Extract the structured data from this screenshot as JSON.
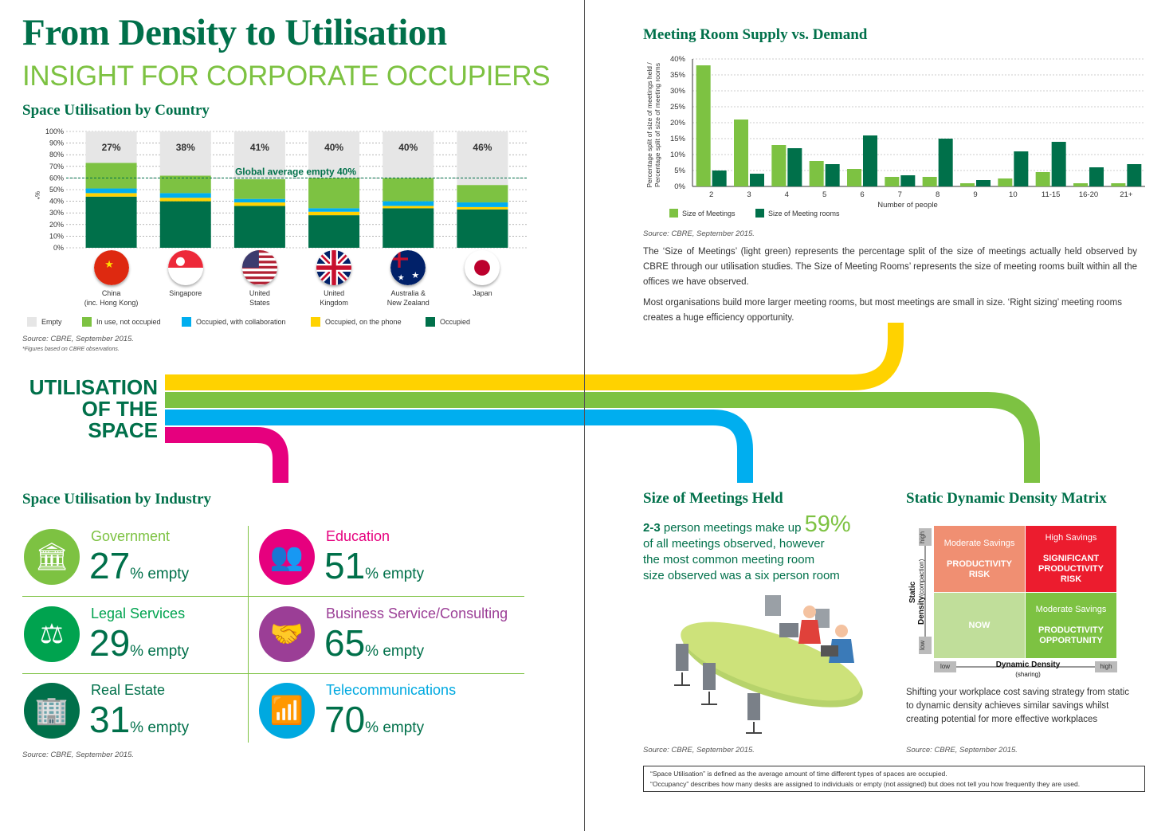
{
  "header": {
    "title": "From Density to Utilisation",
    "subtitle": "INSIGHT FOR CORPORATE OCCUPIERS"
  },
  "country_section": {
    "title": "Space Utilisation by Country",
    "ylabel": "%*",
    "global_avg_label": "Global average empty 40%",
    "countries": [
      {
        "name_l1": "China",
        "name_l2": "(inc. Hong Kong)",
        "empty_label": "27%"
      },
      {
        "name_l1": "Singapore",
        "name_l2": "",
        "empty_label": "38%"
      },
      {
        "name_l1": "United",
        "name_l2": "States",
        "empty_label": "41%"
      },
      {
        "name_l1": "United",
        "name_l2": "Kingdom",
        "empty_label": "40%"
      },
      {
        "name_l1": "Australia &",
        "name_l2": "New Zealand",
        "empty_label": "40%"
      },
      {
        "name_l1": "Japan",
        "name_l2": "",
        "empty_label": "46%"
      }
    ],
    "legend": [
      "Empty",
      "In use, not occupied",
      "Occupied, with collaboration",
      "Occupied, on the phone",
      "Occupied"
    ],
    "source": "Source: CBRE, September 2015.",
    "footnote": "*Figures based on CBRE observations."
  },
  "utilisation_banner": {
    "line1": "UTILISATION",
    "line2": "OF THE",
    "line3": "SPACE"
  },
  "industry_section": {
    "title": "Space Utilisation by Industry",
    "suffix": "% empty",
    "items": [
      {
        "name": "Government",
        "value": "27",
        "color": "#7dc242",
        "icon": "government-building-icon"
      },
      {
        "name": "Education",
        "value": "51",
        "color": "#e6007e",
        "icon": "education-classroom-icon"
      },
      {
        "name": "Legal Services",
        "value": "29",
        "color": "#00a34f",
        "icon": "legal-scales-icon"
      },
      {
        "name": "Business Service/Consulting",
        "value": "65",
        "color": "#9b3e96",
        "icon": "handshake-icon"
      },
      {
        "name": "Real Estate",
        "value": "31",
        "color": "#00704a",
        "icon": "office-building-icon"
      },
      {
        "name": "Telecommunications",
        "value": "70",
        "color": "#00a9e0",
        "icon": "signal-waves-icon"
      }
    ],
    "source": "Source: CBRE, September 2015."
  },
  "meeting_section": {
    "title": "Meeting Room Supply vs. Demand",
    "ylabel_l1": "Percentage split of size of meetings held /",
    "ylabel_l2": "Percentage split of size of meeting rooms",
    "xlabel": "Number of people",
    "source": "Source: CBRE, September 2015.",
    "para1": "The ‘Size of Meetings’ (light green) represents the percentage split of the size of meetings actually held observed by CBRE through our utilisation studies. The Size of Meeting Rooms’ represents the size of meeting rooms built within all the offices we have observed.",
    "para2": "Most organisations build more larger meeting rooms, but most meetings are small in size. ‘Right sizing’ meeting rooms creates a huge efficiency opportunity."
  },
  "meetings_held": {
    "title": "Size of Meetings Held",
    "bold": "2-3",
    "text_a": " person meetings make up ",
    "big": "59%",
    "line2": "of all meetings observed, however",
    "line3": "the most common meeting room",
    "line4": "size observed was a six person room",
    "source": "Source: CBRE, September 2015."
  },
  "matrix": {
    "title": "Static Dynamic Density Matrix",
    "y_axis": "Static Density",
    "y_sub": "(compaction)",
    "x_axis": "Dynamic Density",
    "x_sub": "(sharing)",
    "high": "high",
    "low": "low",
    "tl_1": "Moderate Savings",
    "tl_2a": "PRODUCTIVITY",
    "tl_2b": "RISK",
    "tr_1": "High Savings",
    "tr_2a": "SIGNIFICANT",
    "tr_2b": "PRODUCTIVITY",
    "tr_2c": "RISK",
    "bl_2": "NOW",
    "br_1": "Moderate Savings",
    "br_2a": "PRODUCTIVITY",
    "br_2b": "OPPORTUNITY",
    "para_l1": "Shifting your workplace cost saving strategy from static",
    "para_l2": "to dynamic density achieves similar savings whilst",
    "para_l3": "creating potential for more effective workplaces",
    "source": "Source: CBRE, September 2015."
  },
  "definitions": {
    "line1": "“Space Utilisation” is defined as the average amount of time different types of spaces are occupied.",
    "line2": "“Occupancy” describes how many desks are assigned to individuals or empty (not assigned) but does not tell you how frequently they are used."
  },
  "colors": {
    "dark_green": "#00704a",
    "light_green": "#7dc242",
    "blue": "#00aeef",
    "yellow": "#ffd200",
    "magenta": "#e6007e",
    "empty_grey": "#e6e6e6"
  },
  "chart_data": [
    {
      "type": "bar",
      "stacked": true,
      "title": "Space Utilisation by Country",
      "ylabel": "%*",
      "ylim": [
        0,
        100
      ],
      "yticks": [
        "0%",
        "10%",
        "20%",
        "30%",
        "40%",
        "50%",
        "60%",
        "70%",
        "80%",
        "90%",
        "100%"
      ],
      "categories": [
        "China (inc. Hong Kong)",
        "Singapore",
        "United States",
        "United Kingdom",
        "Australia & New Zealand",
        "Japan"
      ],
      "series": [
        {
          "name": "Occupied",
          "values": [
            44,
            40,
            36,
            28,
            34,
            33
          ]
        },
        {
          "name": "Occupied, on the phone",
          "values": [
            3,
            3,
            3,
            3,
            2,
            2
          ]
        },
        {
          "name": "Occupied, with collaboration",
          "values": [
            4,
            4,
            3,
            3,
            4,
            4
          ]
        },
        {
          "name": "In use, not occupied",
          "values": [
            22,
            15,
            17,
            26,
            20,
            15
          ]
        },
        {
          "name": "Empty",
          "values": [
            27,
            38,
            41,
            40,
            40,
            46
          ]
        }
      ],
      "global_average_empty": 40,
      "grid": true
    },
    {
      "type": "bar",
      "title": "Meeting Room Supply vs. Demand",
      "xlabel": "Number of people",
      "ylabel": "Percentage split of size of meetings held / Percentage split of size of meeting rooms",
      "ylim": [
        0,
        40
      ],
      "yticks": [
        "0%",
        "5%",
        "10%",
        "15%",
        "20%",
        "25%",
        "30%",
        "35%",
        "40%"
      ],
      "categories": [
        "2",
        "3",
        "4",
        "5",
        "6",
        "7",
        "8",
        "9",
        "10",
        "11-15",
        "16-20",
        "21+"
      ],
      "series": [
        {
          "name": "Size of Meetings",
          "values": [
            38,
            21,
            13,
            8,
            5.5,
            3,
            3,
            1,
            2.5,
            4.5,
            1,
            1
          ]
        },
        {
          "name": "Size of Meeting rooms",
          "values": [
            5,
            4,
            12,
            7,
            16,
            3.5,
            15,
            2,
            11,
            14,
            6,
            7
          ]
        }
      ],
      "legend": "bottom-left",
      "grid": true
    }
  ]
}
